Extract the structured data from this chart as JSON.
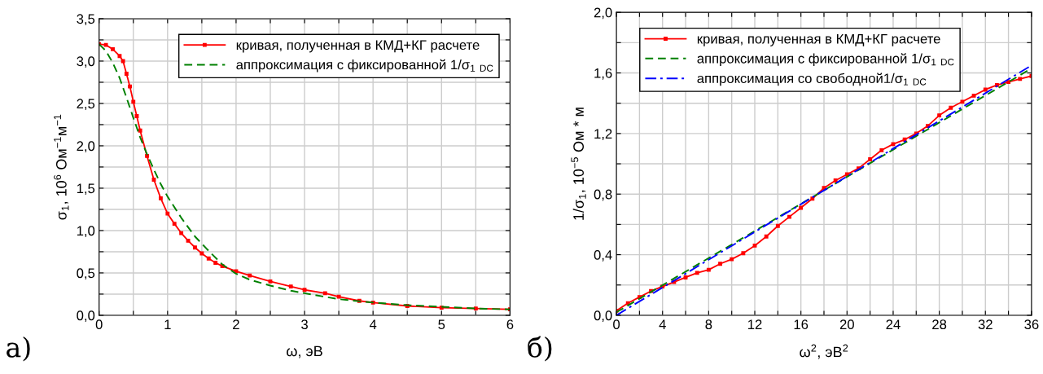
{
  "chart_data": [
    {
      "type": "line",
      "xlabel": "ω, эВ",
      "ylabel": "σ$_{1}$, 10$^{6}$ Ом$^{−1}$м$^{−1}$",
      "xlim": [
        0,
        6
      ],
      "xticks": [
        0,
        {
          "value": 0.5,
          "label": null
        },
        1,
        {
          "value": 1.5,
          "label": null
        },
        2,
        {
          "value": 2.5,
          "label": null
        },
        3,
        {
          "value": 3.5,
          "label": null
        },
        4,
        {
          "value": 4.5,
          "label": null
        },
        5,
        {
          "value": 5.5,
          "label": null
        },
        6
      ],
      "ylim": [
        0,
        3.5
      ],
      "yticks": [
        {
          "value": 0,
          "label": "0,0"
        },
        {
          "value": 0.25,
          "label": null
        },
        {
          "value": 0.5,
          "label": "0,5"
        },
        {
          "value": 0.75,
          "label": null
        },
        {
          "value": 1.0,
          "label": "1,0"
        },
        {
          "value": 1.25,
          "label": null
        },
        {
          "value": 1.5,
          "label": "1,5"
        },
        {
          "value": 1.75,
          "label": null
        },
        {
          "value": 2.0,
          "label": "2,0"
        },
        {
          "value": 2.25,
          "label": null
        },
        {
          "value": 2.5,
          "label": "2,5"
        },
        {
          "value": 2.75,
          "label": null
        },
        {
          "value": 3.0,
          "label": "3,0"
        },
        {
          "value": 3.25,
          "label": null
        },
        {
          "value": 3.5,
          "label": "3,5"
        }
      ],
      "grid": true,
      "legend": "top right",
      "annotations": [
        "а)"
      ],
      "series": [
        {
          "name": "кривая, полученная в КМД+КГ расчете",
          "color": "#ff0000",
          "marker": "square",
          "line_style": "solid",
          "x": [
            0,
            0.1,
            0.2,
            0.3,
            0.35,
            0.4,
            0.45,
            0.5,
            0.55,
            0.6,
            0.7,
            0.8,
            0.9,
            1.0,
            1.1,
            1.2,
            1.3,
            1.4,
            1.5,
            1.6,
            1.7,
            1.8,
            2.0,
            2.2,
            2.5,
            2.8,
            3.0,
            3.3,
            3.5,
            3.8,
            4.0,
            4.5,
            5.0,
            5.5,
            6.0
          ],
          "values": [
            3.2,
            3.19,
            3.14,
            3.06,
            3.0,
            2.85,
            2.7,
            2.52,
            2.35,
            2.18,
            1.88,
            1.6,
            1.38,
            1.2,
            1.08,
            0.97,
            0.88,
            0.8,
            0.73,
            0.67,
            0.62,
            0.58,
            0.52,
            0.47,
            0.4,
            0.34,
            0.3,
            0.26,
            0.22,
            0.17,
            0.15,
            0.11,
            0.09,
            0.08,
            0.07
          ]
        },
        {
          "name": "аппроксимация с фиксированной 1/σ$_{1}$ $_{DC}$",
          "color": "#008000",
          "marker": "none",
          "line_style": "dashed",
          "x": [
            0,
            0.1,
            0.2,
            0.3,
            0.4,
            0.5,
            0.6,
            0.7,
            0.8,
            0.9,
            1.0,
            1.2,
            1.4,
            1.6,
            1.8,
            2.0,
            2.2,
            2.5,
            2.8,
            3.0,
            3.5,
            4.0,
            4.5,
            5.0,
            5.5,
            6.0
          ],
          "values": [
            3.2,
            3.12,
            2.98,
            2.8,
            2.57,
            2.33,
            2.1,
            1.9,
            1.72,
            1.55,
            1.4,
            1.15,
            0.93,
            0.76,
            0.6,
            0.49,
            0.42,
            0.35,
            0.29,
            0.26,
            0.19,
            0.15,
            0.12,
            0.1,
            0.08,
            0.07
          ]
        }
      ]
    },
    {
      "type": "line",
      "xlabel": "ω$^{2}$, эВ$^{2}$",
      "ylabel": "1/σ$_{1}$, 10$^{−5}$ Ом * м",
      "xlim": [
        0,
        36
      ],
      "xticks": [
        0,
        {
          "value": 2,
          "label": null
        },
        4,
        {
          "value": 6,
          "label": null
        },
        8,
        {
          "value": 10,
          "label": null
        },
        12,
        {
          "value": 14,
          "label": null
        },
        16,
        {
          "value": 18,
          "label": null
        },
        20,
        {
          "value": 22,
          "label": null
        },
        24,
        {
          "value": 26,
          "label": null
        },
        28,
        {
          "value": 30,
          "label": null
        },
        32,
        {
          "value": 34,
          "label": null
        },
        36
      ],
      "ylim": [
        0,
        2.0
      ],
      "yticks": [
        {
          "value": 0,
          "label": "0,0"
        },
        {
          "value": 0.2,
          "label": null
        },
        {
          "value": 0.4,
          "label": "0,4"
        },
        {
          "value": 0.6,
          "label": null
        },
        {
          "value": 0.8,
          "label": "0,8"
        },
        {
          "value": 1.0,
          "label": null
        },
        {
          "value": 1.2,
          "label": "1,2"
        },
        {
          "value": 1.4,
          "label": null
        },
        {
          "value": 1.6,
          "label": "1,6"
        },
        {
          "value": 1.8,
          "label": null
        },
        {
          "value": 2.0,
          "label": "2,0"
        }
      ],
      "grid": true,
      "legend": "top left",
      "annotations": [
        "б)"
      ],
      "series": [
        {
          "name": "кривая, полученная в КМД+КГ расчете",
          "color": "#ff0000",
          "marker": "square",
          "line_style": "solid",
          "x": [
            0,
            1,
            2,
            3,
            4,
            5,
            6,
            7,
            8,
            9,
            10,
            11,
            12,
            13,
            14,
            15,
            16,
            17,
            18,
            19,
            20,
            21,
            22,
            23,
            24,
            25,
            26,
            27,
            28,
            29,
            30,
            31,
            32,
            33,
            34,
            35,
            36
          ],
          "values": [
            0.03,
            0.08,
            0.12,
            0.16,
            0.19,
            0.22,
            0.25,
            0.28,
            0.3,
            0.34,
            0.37,
            0.41,
            0.46,
            0.52,
            0.59,
            0.65,
            0.71,
            0.77,
            0.84,
            0.89,
            0.93,
            0.97,
            1.03,
            1.09,
            1.13,
            1.16,
            1.2,
            1.25,
            1.32,
            1.37,
            1.41,
            1.45,
            1.49,
            1.52,
            1.54,
            1.56,
            1.58
          ]
        },
        {
          "name": "аппроксимация с фиксированной 1/σ$_{1}$ $_{DC}$",
          "color": "#008000",
          "marker": "none",
          "line_style": "dashed",
          "x": [
            0,
            36
          ],
          "values": [
            0.02,
            1.63
          ]
        },
        {
          "name": "аппроксимация со свободной1/σ$_{1}$ $_{DC}$",
          "color": "#0000ff",
          "marker": "none",
          "line_style": "dashdot",
          "x": [
            0,
            36
          ],
          "values": [
            0.0,
            1.65
          ]
        }
      ]
    }
  ]
}
